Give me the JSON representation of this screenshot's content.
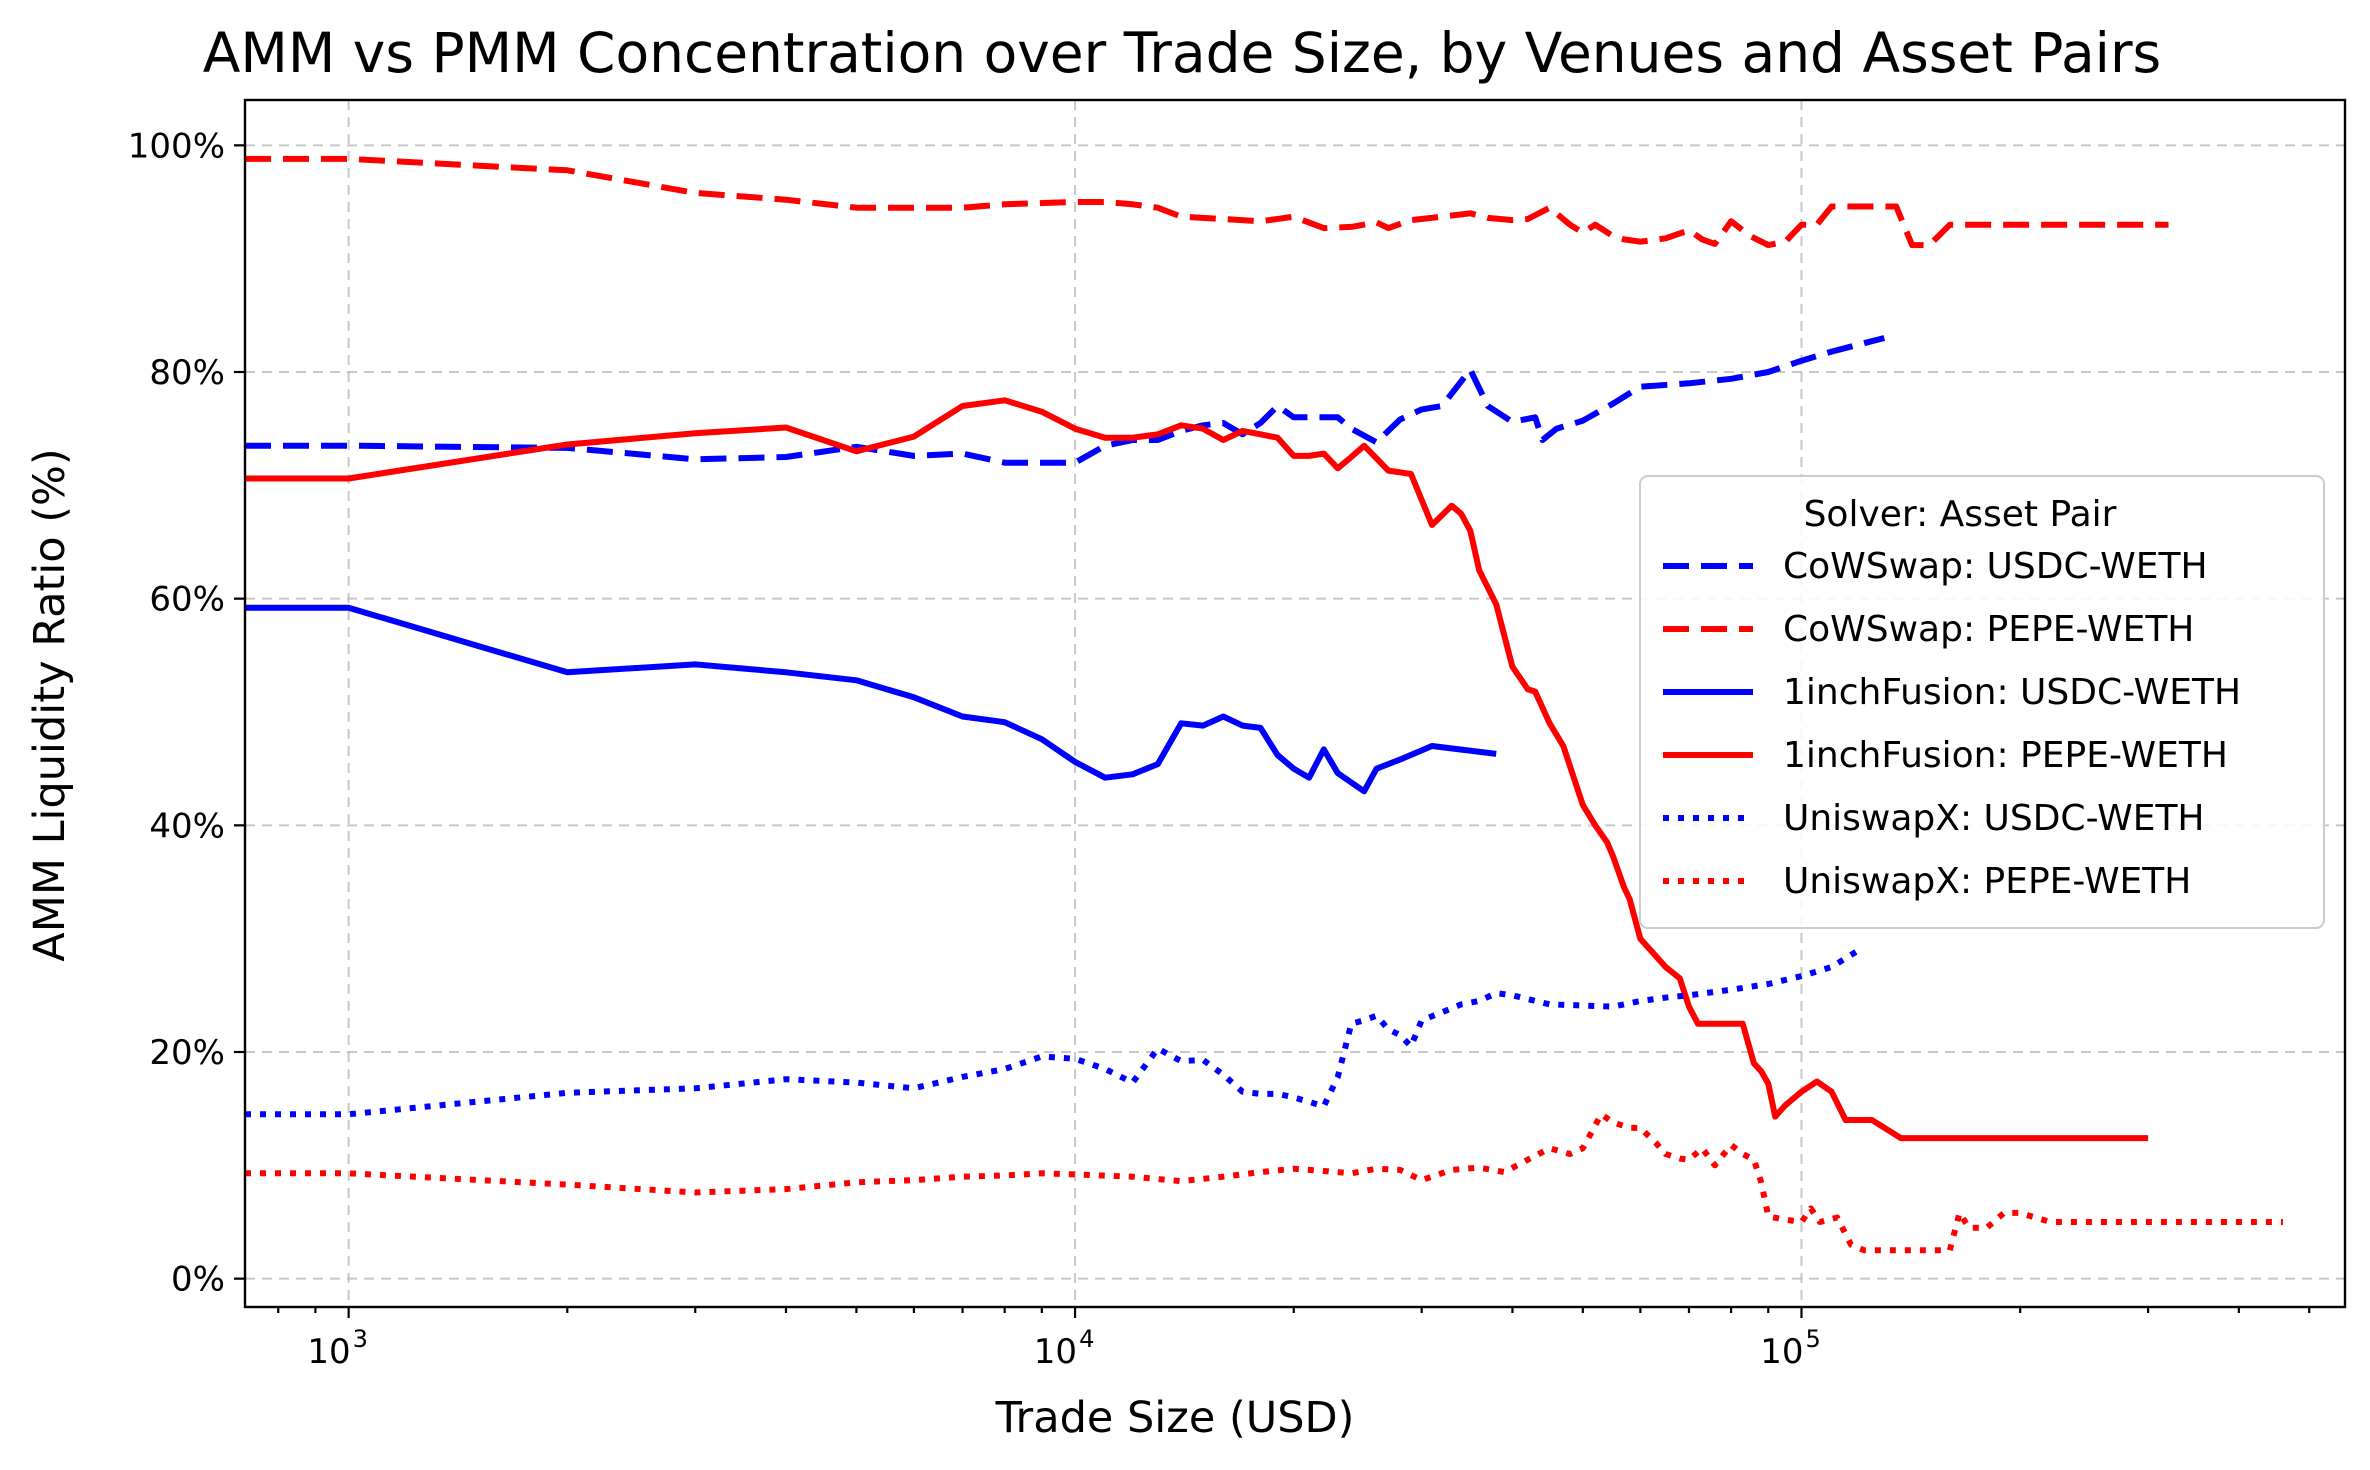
{
  "chart_data": {
    "type": "line",
    "title": "AMM vs PMM Concentration over Trade Size, by Venues and Asset Pairs",
    "xlabel": "Trade Size (USD)",
    "ylabel": "AMM Liquidity Ratio (%)",
    "xscale": "log",
    "xlim": [
      720,
      560000
    ],
    "ylim": [
      -2.5,
      104
    ],
    "grid": true,
    "x_ticks": [
      {
        "value": 1000,
        "base": "10",
        "exp": "3"
      },
      {
        "value": 10000,
        "base": "10",
        "exp": "4"
      },
      {
        "value": 100000,
        "base": "10",
        "exp": "5"
      }
    ],
    "y_ticks": [
      {
        "value": 0,
        "label": "0%"
      },
      {
        "value": 20,
        "label": "20%"
      },
      {
        "value": 40,
        "label": "40%"
      },
      {
        "value": 60,
        "label": "60%"
      },
      {
        "value": 80,
        "label": "80%"
      },
      {
        "value": 100,
        "label": "100%"
      }
    ],
    "legend": {
      "title": "Solver: Asset Pair",
      "position": "center-right"
    },
    "series": [
      {
        "name": "CoWSwap: USDC-WETH",
        "color": "#0000ff",
        "style": "dashed",
        "x": [
          720,
          1000,
          2000,
          3000,
          4000,
          5000,
          6000,
          7000,
          8000,
          10000,
          11000,
          12000,
          13000,
          14000,
          15000,
          16000,
          17000,
          18000,
          19000,
          20000,
          22000,
          23000,
          24000,
          26000,
          28000,
          30000,
          32000,
          35000,
          37000,
          40000,
          43000,
          44000,
          46000,
          50000,
          55000,
          60000,
          70000,
          80000,
          90000,
          100000,
          110000,
          130000
        ],
        "y": [
          73.5,
          73.5,
          73.3,
          72.3,
          72.5,
          73.4,
          72.6,
          72.8,
          72.0,
          72.0,
          73.5,
          74.0,
          74.0,
          74.8,
          75.3,
          75.5,
          74.5,
          75.5,
          77.0,
          76.0,
          76.0,
          76.0,
          75.0,
          73.8,
          75.8,
          76.7,
          77.0,
          80.2,
          77.0,
          75.6,
          76.0,
          74.0,
          75.0,
          75.7,
          77.2,
          78.7,
          79.0,
          79.4,
          80.0,
          81.0,
          81.8,
          83.0
        ]
      },
      {
        "name": "CoWSwap: PEPE-WETH",
        "color": "#ff0000",
        "style": "dashed",
        "x": [
          720,
          1000,
          2000,
          3000,
          4000,
          5000,
          6000,
          7000,
          8000,
          10000,
          11000,
          12000,
          13000,
          14000,
          16000,
          18000,
          20000,
          22000,
          24000,
          26000,
          27000,
          29000,
          32000,
          35000,
          37000,
          40000,
          42000,
          45000,
          48000,
          50000,
          52000,
          55000,
          57000,
          60000,
          65000,
          70000,
          73000,
          76000,
          80000,
          85000,
          90000,
          95000,
          100000,
          105000,
          110000,
          135000,
          142000,
          150000,
          160000,
          200000,
          320000
        ],
        "y": [
          98.8,
          98.8,
          97.8,
          95.8,
          95.2,
          94.5,
          94.5,
          94.5,
          94.8,
          95.0,
          95.0,
          94.8,
          94.5,
          93.7,
          93.5,
          93.3,
          93.7,
          92.7,
          92.8,
          93.2,
          92.7,
          93.4,
          93.7,
          94.0,
          93.6,
          93.4,
          93.5,
          94.5,
          93.0,
          92.3,
          93.0,
          92.0,
          91.7,
          91.5,
          91.8,
          92.5,
          91.7,
          91.3,
          93.3,
          92.0,
          91.2,
          91.5,
          93.0,
          93.0,
          94.6,
          94.6,
          91.2,
          91.2,
          93.0,
          93.0,
          93.0
        ]
      },
      {
        "name": "1inchFusion: USDC-WETH",
        "color": "#0000ff",
        "style": "solid",
        "x": [
          720,
          1000,
          2000,
          3000,
          4000,
          5000,
          6000,
          7000,
          8000,
          9000,
          10000,
          11000,
          12000,
          13000,
          14000,
          15000,
          16000,
          17000,
          18000,
          19000,
          20000,
          21000,
          22000,
          23000,
          25000,
          26000,
          28000,
          31000,
          38000
        ],
        "y": [
          59.2,
          59.2,
          53.5,
          54.2,
          53.5,
          52.8,
          51.3,
          49.6,
          49.1,
          47.6,
          45.6,
          44.2,
          44.5,
          45.4,
          49.0,
          48.8,
          49.6,
          48.8,
          48.6,
          46.2,
          45.0,
          44.2,
          46.7,
          44.6,
          43.0,
          45.0,
          45.8,
          47.0,
          46.3
        ]
      },
      {
        "name": "1inchFusion: PEPE-WETH",
        "color": "#ff0000",
        "style": "solid",
        "x": [
          720,
          1000,
          2000,
          3000,
          4000,
          5000,
          6000,
          7000,
          8000,
          9000,
          10000,
          11000,
          12000,
          13000,
          14000,
          15000,
          16000,
          17000,
          18000,
          19000,
          20000,
          21000,
          22000,
          23000,
          24000,
          25000,
          27000,
          29000,
          31000,
          33000,
          34000,
          35000,
          36000,
          38000,
          40000,
          42000,
          43000,
          45000,
          47000,
          50000,
          52000,
          54000,
          55000,
          57000,
          58000,
          60000,
          65000,
          68000,
          70000,
          72000,
          80000,
          83000,
          86000,
          88000,
          90000,
          92000,
          95000,
          100000,
          105000,
          110000,
          115000,
          125000,
          137000,
          300000
        ],
        "y": [
          70.6,
          70.6,
          73.6,
          74.6,
          75.1,
          73.0,
          74.3,
          77.0,
          77.5,
          76.5,
          75.0,
          74.2,
          74.2,
          74.5,
          75.3,
          75.0,
          74.0,
          74.8,
          74.5,
          74.2,
          72.6,
          72.6,
          72.8,
          71.5,
          72.5,
          73.5,
          71.3,
          71.0,
          66.5,
          68.2,
          67.5,
          66.0,
          62.5,
          59.5,
          54.0,
          52.0,
          51.8,
          49.0,
          47.0,
          41.8,
          40.0,
          38.5,
          37.3,
          34.5,
          33.5,
          30.0,
          27.5,
          26.5,
          24.0,
          22.5,
          22.5,
          22.5,
          19.0,
          18.3,
          17.2,
          14.3,
          15.3,
          16.5,
          17.4,
          16.5,
          14.0,
          14.0,
          12.4,
          12.4
        ]
      },
      {
        "name": "UniswapX: USDC-WETH",
        "color": "#0000ff",
        "style": "dotted",
        "x": [
          720,
          1000,
          2000,
          3000,
          4000,
          5000,
          6000,
          7000,
          8000,
          9000,
          10000,
          11000,
          12000,
          13000,
          14000,
          15000,
          16000,
          17000,
          18000,
          19000,
          20000,
          21000,
          22000,
          23000,
          24000,
          25000,
          26000,
          27000,
          28000,
          29000,
          30000,
          32000,
          34000,
          36000,
          38000,
          40000,
          45000,
          50000,
          55000,
          60000,
          65000,
          70000,
          80000,
          90000,
          100000,
          110000,
          120000
        ],
        "y": [
          14.5,
          14.5,
          16.4,
          16.8,
          17.6,
          17.3,
          16.8,
          17.8,
          18.5,
          19.6,
          19.4,
          18.5,
          17.3,
          20.3,
          19.2,
          19.3,
          18.0,
          16.5,
          16.3,
          16.3,
          16.0,
          15.6,
          15.2,
          17.8,
          22.5,
          22.8,
          23.2,
          22.0,
          21.5,
          20.5,
          22.8,
          23.5,
          24.2,
          24.5,
          25.2,
          25.0,
          24.2,
          24.1,
          24.0,
          24.5,
          24.8,
          25.0,
          25.5,
          26.0,
          26.7,
          27.5,
          29.0
        ]
      },
      {
        "name": "UniswapX: PEPE-WETH",
        "color": "#ff0000",
        "style": "dotted",
        "x": [
          720,
          1000,
          2000,
          3000,
          4000,
          5000,
          6000,
          7000,
          8000,
          9000,
          10000,
          12000,
          14000,
          16000,
          18000,
          20000,
          22000,
          24000,
          26000,
          28000,
          30000,
          33000,
          36000,
          39000,
          42000,
          45000,
          48000,
          50000,
          53000,
          55000,
          58000,
          60000,
          63000,
          65000,
          68000,
          70000,
          73000,
          76000,
          80000,
          83000,
          86000,
          88000,
          90000,
          95000,
          100000,
          103000,
          106000,
          112000,
          117000,
          122000,
          130000,
          140000,
          150000,
          160000,
          165000,
          170000,
          180000,
          190000,
          200000,
          220000,
          250000,
          300000,
          460000
        ],
        "y": [
          9.3,
          9.3,
          8.3,
          7.6,
          7.9,
          8.5,
          8.7,
          9.0,
          9.1,
          9.3,
          9.2,
          9.0,
          8.6,
          9.0,
          9.4,
          9.7,
          9.5,
          9.3,
          9.7,
          9.6,
          8.7,
          9.6,
          9.8,
          9.4,
          10.5,
          11.5,
          11.0,
          11.5,
          14.5,
          13.8,
          13.3,
          13.3,
          12.0,
          11.0,
          10.6,
          10.5,
          11.5,
          10.0,
          11.8,
          11.0,
          10.5,
          8.5,
          5.5,
          5.2,
          5.0,
          6.2,
          5.0,
          5.4,
          3.0,
          2.5,
          2.5,
          2.5,
          2.5,
          2.5,
          5.8,
          4.5,
          4.5,
          5.8,
          5.8,
          5.0,
          5.0,
          5.0,
          5.0
        ]
      }
    ]
  }
}
